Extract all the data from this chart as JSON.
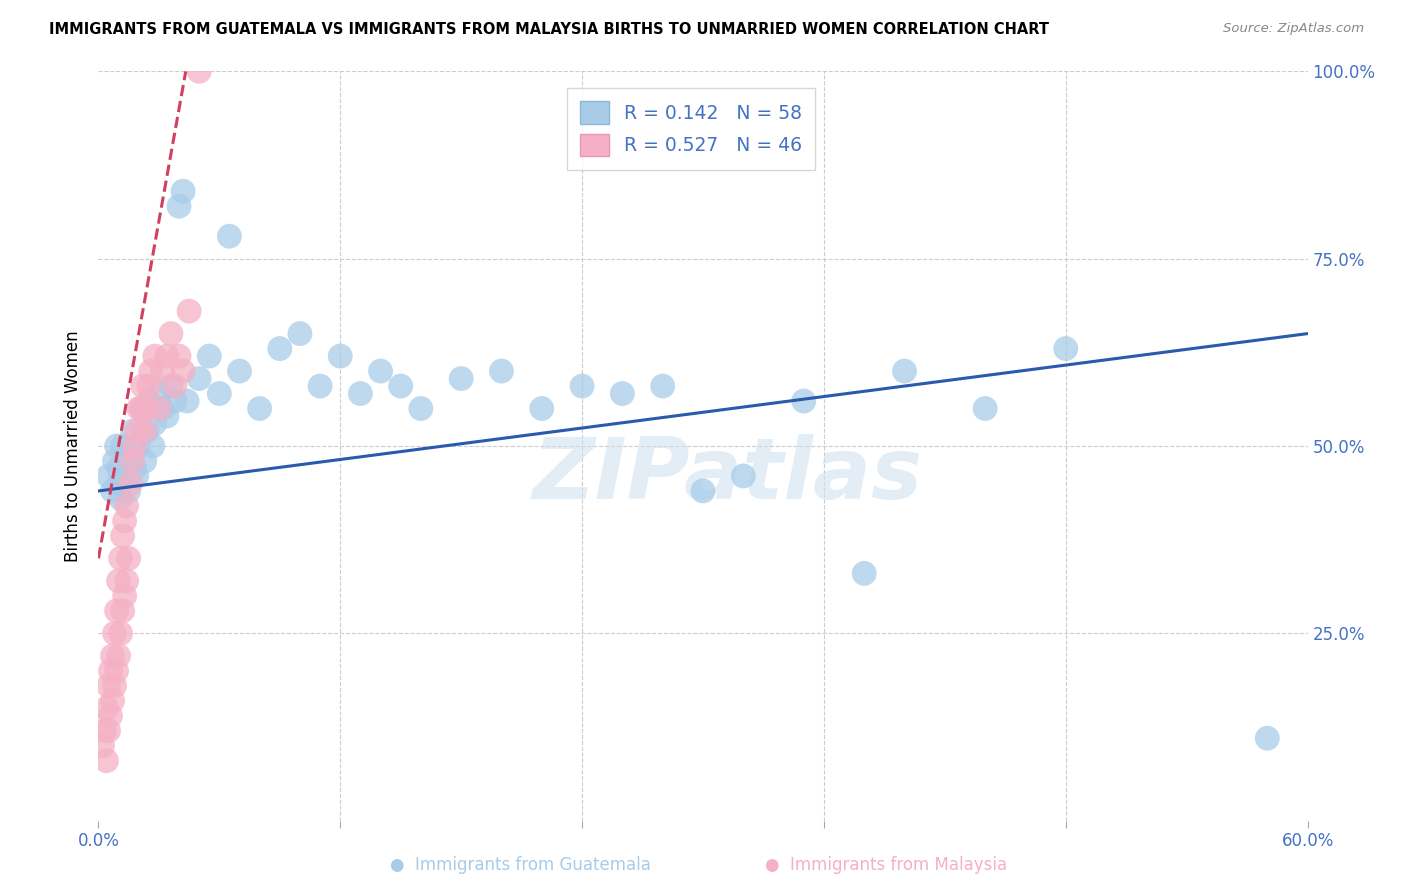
{
  "title": "IMMIGRANTS FROM GUATEMALA VS IMMIGRANTS FROM MALAYSIA BIRTHS TO UNMARRIED WOMEN CORRELATION CHART",
  "source": "Source: ZipAtlas.com",
  "ylabel": "Births to Unmarried Women",
  "R1": 0.142,
  "N1": 58,
  "R2": 0.527,
  "N2": 46,
  "xlim": [
    0.0,
    0.6
  ],
  "ylim": [
    0.0,
    1.0
  ],
  "blue_scatter_color": "#a8cce8",
  "pink_scatter_color": "#f5b0c5",
  "blue_line_color": "#2a5aad",
  "pink_line_color": "#d04060",
  "watermark": "ZIPatlas",
  "guatemala_x": [
    0.005,
    0.007,
    0.008,
    0.009,
    0.01,
    0.01,
    0.011,
    0.012,
    0.013,
    0.014,
    0.015,
    0.016,
    0.017,
    0.018,
    0.019,
    0.02,
    0.022,
    0.023,
    0.024,
    0.025,
    0.027,
    0.028,
    0.03,
    0.032,
    0.034,
    0.036,
    0.038,
    0.04,
    0.042,
    0.044,
    0.05,
    0.055,
    0.06,
    0.065,
    0.07,
    0.08,
    0.09,
    0.1,
    0.11,
    0.12,
    0.13,
    0.14,
    0.15,
    0.16,
    0.18,
    0.2,
    0.22,
    0.24,
    0.26,
    0.28,
    0.3,
    0.32,
    0.35,
    0.38,
    0.4,
    0.44,
    0.48,
    0.58
  ],
  "guatemala_y": [
    0.46,
    0.44,
    0.48,
    0.5,
    0.47,
    0.45,
    0.43,
    0.5,
    0.46,
    0.49,
    0.44,
    0.48,
    0.52,
    0.47,
    0.46,
    0.5,
    0.55,
    0.48,
    0.52,
    0.56,
    0.5,
    0.53,
    0.57,
    0.55,
    0.54,
    0.58,
    0.56,
    0.82,
    0.84,
    0.56,
    0.59,
    0.62,
    0.57,
    0.78,
    0.6,
    0.55,
    0.63,
    0.65,
    0.58,
    0.62,
    0.57,
    0.6,
    0.58,
    0.55,
    0.59,
    0.6,
    0.55,
    0.58,
    0.57,
    0.58,
    0.44,
    0.46,
    0.56,
    0.33,
    0.6,
    0.55,
    0.63,
    0.11
  ],
  "malaysia_x": [
    0.002,
    0.003,
    0.004,
    0.004,
    0.005,
    0.005,
    0.006,
    0.006,
    0.007,
    0.007,
    0.008,
    0.008,
    0.009,
    0.009,
    0.01,
    0.01,
    0.011,
    0.011,
    0.012,
    0.012,
    0.013,
    0.013,
    0.014,
    0.014,
    0.015,
    0.016,
    0.017,
    0.018,
    0.019,
    0.02,
    0.021,
    0.022,
    0.023,
    0.024,
    0.025,
    0.026,
    0.028,
    0.03,
    0.032,
    0.034,
    0.036,
    0.038,
    0.04,
    0.042,
    0.045,
    0.05
  ],
  "malaysia_y": [
    0.1,
    0.12,
    0.08,
    0.15,
    0.12,
    0.18,
    0.14,
    0.2,
    0.16,
    0.22,
    0.18,
    0.25,
    0.2,
    0.28,
    0.22,
    0.32,
    0.25,
    0.35,
    0.28,
    0.38,
    0.3,
    0.4,
    0.32,
    0.42,
    0.35,
    0.45,
    0.48,
    0.5,
    0.52,
    0.55,
    0.55,
    0.58,
    0.52,
    0.55,
    0.58,
    0.6,
    0.62,
    0.55,
    0.6,
    0.62,
    0.65,
    0.58,
    0.62,
    0.6,
    0.68,
    1.0
  ]
}
